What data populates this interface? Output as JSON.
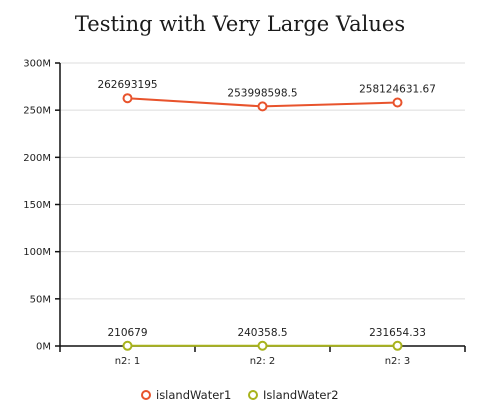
{
  "chart_data": {
    "type": "line",
    "title": "Testing with Very Large Values",
    "categories": [
      "n2: 1",
      "n2: 2",
      "n2: 3"
    ],
    "yticks": [
      "0M",
      "50M",
      "100M",
      "150M",
      "200M",
      "250M",
      "300M"
    ],
    "ytick_values": [
      0,
      50000000,
      100000000,
      150000000,
      200000000,
      250000000,
      300000000
    ],
    "ylim": [
      0,
      300000000
    ],
    "grid": true,
    "legend_position": "bottom",
    "series": [
      {
        "name": "islandWater1",
        "color": "#e8532c",
        "values": [
          262693195,
          253998598.5,
          258124631.67
        ],
        "labels": [
          "262693195",
          "253998598.5",
          "258124631.67"
        ]
      },
      {
        "name": "IslandWater2",
        "color": "#a8b31c",
        "values": [
          210679,
          240358.5,
          231654.33
        ],
        "labels": [
          "210679",
          "240358.5",
          "231654.33"
        ]
      }
    ]
  }
}
